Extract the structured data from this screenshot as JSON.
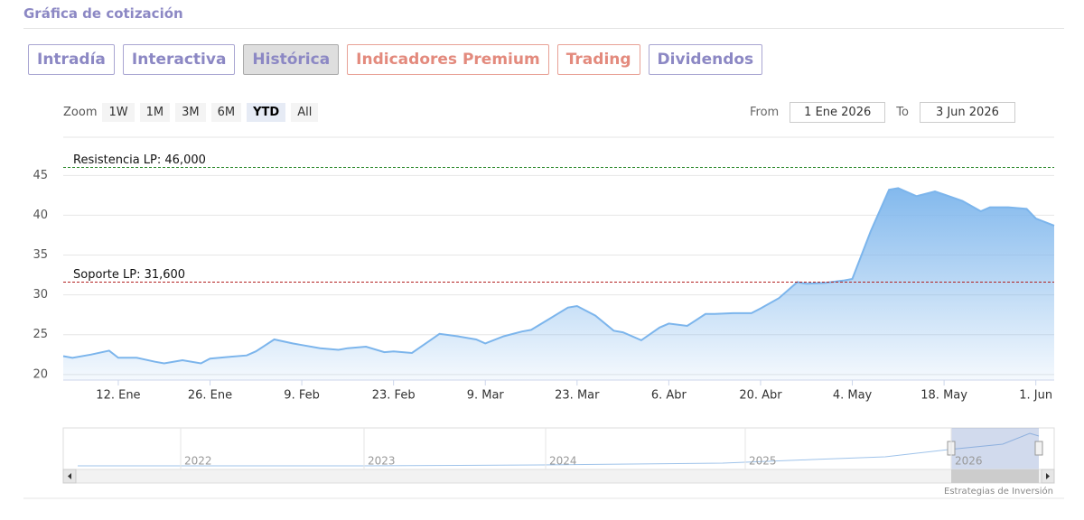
{
  "header": {
    "title": "Gráfica de cotización"
  },
  "tabs": [
    "Intradía",
    "Interactiva",
    "Histórica",
    "Indicadores Premium",
    "Trading",
    "Dividendos"
  ],
  "range_selector": {
    "label": "Zoom",
    "buttons": [
      "1W",
      "1M",
      "3M",
      "6M",
      "YTD",
      "All"
    ],
    "selected": "YTD"
  },
  "date_range": {
    "from_label": "From",
    "from": "1 Ene 2026",
    "to_label": "To",
    "to": "3 Jun 2026"
  },
  "chart_data": {
    "type": "area",
    "color": "#7cb5ec",
    "grid": true,
    "x": [
      "2026-01-02",
      "2026-01-05",
      "2026-01-07",
      "2026-01-09",
      "2026-01-12",
      "2026-01-14",
      "2026-01-16",
      "2026-01-19",
      "2026-01-21",
      "2026-01-23",
      "2026-01-26",
      "2026-01-28",
      "2026-01-30",
      "2026-02-02",
      "2026-02-04",
      "2026-02-06",
      "2026-02-09",
      "2026-02-11",
      "2026-02-13",
      "2026-02-16",
      "2026-02-18",
      "2026-02-20",
      "2026-02-23",
      "2026-02-25",
      "2026-02-27",
      "2026-03-02",
      "2026-03-04",
      "2026-03-06",
      "2026-03-09",
      "2026-03-11",
      "2026-03-13",
      "2026-03-16",
      "2026-03-18",
      "2026-03-20",
      "2026-03-23",
      "2026-03-25",
      "2026-03-27",
      "2026-03-30",
      "2026-04-01",
      "2026-04-03",
      "2026-04-06",
      "2026-04-08",
      "2026-04-10",
      "2026-04-13",
      "2026-04-15",
      "2026-04-17",
      "2026-04-20",
      "2026-04-22",
      "2026-04-24",
      "2026-04-27",
      "2026-04-29",
      "2026-05-01",
      "2026-05-04",
      "2026-05-06",
      "2026-05-08",
      "2026-05-11",
      "2026-05-13",
      "2026-05-15",
      "2026-05-18",
      "2026-05-20",
      "2026-05-22",
      "2026-05-25",
      "2026-05-27",
      "2026-05-29",
      "2026-06-01",
      "2026-06-03"
    ],
    "values": [
      22.3,
      22.1,
      22.5,
      23.0,
      22.1,
      22.1,
      21.6,
      21.4,
      21.8,
      21.4,
      22.0,
      22.2,
      22.4,
      22.9,
      24.4,
      23.9,
      23.7,
      23.3,
      23.1,
      23.3,
      23.5,
      22.8,
      22.9,
      22.7,
      24.3,
      25.1,
      24.8,
      24.4,
      23.9,
      24.8,
      25.4,
      25.6,
      27.0,
      28.4,
      28.6,
      27.4,
      25.5,
      25.3,
      24.3,
      25.9,
      26.4,
      26.1,
      27.6,
      27.6,
      27.7,
      27.7,
      28.3,
      29.6,
      31.6,
      31.4,
      31.5,
      31.8,
      32.0,
      38.0,
      43.2,
      43.4,
      42.4,
      43.0,
      42.6,
      41.8,
      40.5,
      41.0,
      41.0,
      40.8,
      39.6,
      38.7
    ],
    "xlim": [
      "2026-01-02",
      "2026-06-03"
    ],
    "xticks": [
      {
        "value": "2026-01-12",
        "label": "12. Ene"
      },
      {
        "value": "2026-01-26",
        "label": "26. Ene"
      },
      {
        "value": "2026-02-09",
        "label": "9. Feb"
      },
      {
        "value": "2026-02-23",
        "label": "23. Feb"
      },
      {
        "value": "2026-03-09",
        "label": "9. Mar"
      },
      {
        "value": "2026-03-23",
        "label": "23. Mar"
      },
      {
        "value": "2026-04-06",
        "label": "6. Abr"
      },
      {
        "value": "2026-04-20",
        "label": "20. Abr"
      },
      {
        "value": "2026-05-04",
        "label": "4. May"
      },
      {
        "value": "2026-05-18",
        "label": "18. May"
      },
      {
        "value": "2026-06-01",
        "label": "1. Jun"
      }
    ],
    "ylim": [
      19.3,
      49.8
    ],
    "yticks": [
      20,
      25,
      30,
      35,
      40,
      45
    ],
    "plot_lines": [
      {
        "value": 46,
        "label": "Resistencia LP: 46,000",
        "color": "#2e8b2e"
      },
      {
        "value": 31.6,
        "label": "Soporte LP: 31,600",
        "color": "#b22222"
      }
    ]
  },
  "navigator": {
    "labels": [
      "2022",
      "2023",
      "2024",
      "2025",
      "2026"
    ]
  },
  "credit": "Estrategias de Inversión"
}
